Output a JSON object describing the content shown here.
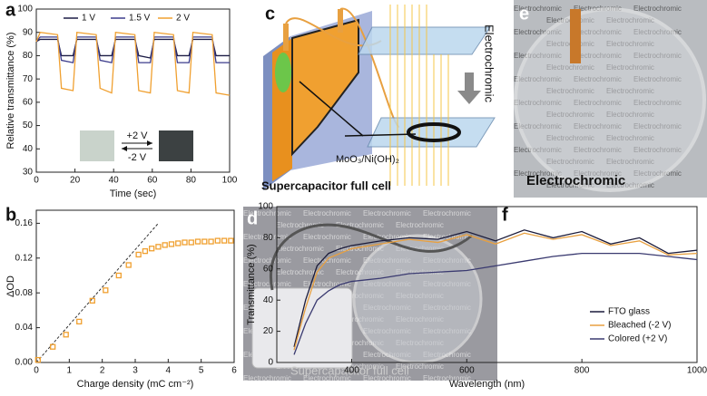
{
  "chart_data": [
    {
      "type": "line",
      "label": "a",
      "x_label": "Time (sec)",
      "y_label": "Relative transmittance (%)",
      "x": [
        0,
        2,
        11,
        13,
        19,
        21,
        31,
        33,
        39,
        41,
        51,
        53,
        59,
        61,
        71,
        73,
        79,
        81,
        91,
        93,
        100
      ],
      "series": [
        {
          "name": "1 V",
          "color": "#1c1c45",
          "values": [
            86,
            87,
            87,
            80,
            80,
            87,
            87,
            80,
            80,
            87,
            87,
            80,
            79,
            87,
            87,
            80,
            80,
            87,
            87,
            80,
            80
          ]
        },
        {
          "name": "1.5 V",
          "color": "#3c3c8c",
          "values": [
            86,
            88,
            88,
            78,
            77,
            88,
            88,
            78,
            77,
            88,
            88,
            77,
            77,
            88,
            88,
            77,
            77,
            88,
            88,
            77,
            77
          ]
        },
        {
          "name": "2 V",
          "color": "#f0a030",
          "values": [
            86,
            90,
            89,
            66,
            65,
            90,
            89,
            66,
            64,
            90,
            89,
            65,
            64,
            90,
            89,
            65,
            64,
            90,
            89,
            64,
            63
          ]
        }
      ],
      "xlim": [
        0,
        100
      ],
      "xticks": [
        0,
        20,
        40,
        60,
        80,
        100
      ],
      "ylim": [
        30,
        100
      ],
      "yticks": [
        30,
        40,
        50,
        60,
        70,
        80,
        90,
        100
      ],
      "legend": "upper center",
      "annotations": [
        "+2 V",
        "-2 V"
      ]
    },
    {
      "type": "scatter",
      "label": "b",
      "x_label": "Charge density (mC cm⁻²)",
      "y_label": "ΔOD",
      "color": "#f0a030",
      "x": [
        0.05,
        0.5,
        0.9,
        1.3,
        1.7,
        2.1,
        2.5,
        2.8,
        3.1,
        3.3,
        3.5,
        3.7,
        3.9,
        4.1,
        4.3,
        4.5,
        4.7,
        4.9,
        5.1,
        5.3,
        5.5,
        5.7,
        5.9
      ],
      "values": [
        0.003,
        0.018,
        0.032,
        0.047,
        0.071,
        0.083,
        0.1,
        0.112,
        0.124,
        0.128,
        0.131,
        0.133,
        0.135,
        0.136,
        0.137,
        0.138,
        0.138,
        0.139,
        0.139,
        0.139,
        0.14,
        0.14,
        0.14
      ],
      "fit": {
        "x": [
          0,
          3.7
        ],
        "y": [
          0,
          0.16
        ]
      },
      "xlim": [
        0,
        6
      ],
      "xticks": [
        0,
        1,
        2,
        3,
        4,
        5,
        6
      ],
      "ylim": [
        0,
        0.175
      ],
      "yticks": [
        {
          "value": 0,
          "label": "0.00"
        },
        0.04,
        0.08,
        0.12,
        0.16
      ]
    },
    {
      "type": "line",
      "label": "f",
      "x_label": "Wavelength (nm)",
      "y_label": "Transmittance (%)",
      "x": [
        300,
        320,
        340,
        360,
        380,
        400,
        450,
        500,
        550,
        600,
        650,
        700,
        750,
        800,
        850,
        900,
        950,
        1000
      ],
      "series": [
        {
          "name": "FTO glass",
          "color": "#1b1b3a",
          "values": [
            10,
            40,
            62,
            70,
            73,
            75,
            78,
            80,
            79,
            84,
            78,
            85,
            80,
            84,
            76,
            80,
            70,
            72
          ]
        },
        {
          "name": "Bleached (-2 V)",
          "color": "#e8a040",
          "values": [
            8,
            35,
            58,
            67,
            70,
            73,
            76,
            79,
            77,
            82,
            76,
            83,
            79,
            82,
            75,
            78,
            69,
            70
          ]
        },
        {
          "name": "Colored (+2 V)",
          "color": "#3a3a70",
          "values": [
            5,
            25,
            40,
            46,
            50,
            52,
            54,
            57,
            58,
            59,
            62,
            65,
            68,
            70,
            70,
            70,
            68,
            66
          ]
        }
      ],
      "xlim": [
        270,
        1000
      ],
      "xticks": [
        400,
        600,
        800,
        1000
      ],
      "ylim": [
        0,
        100
      ],
      "yticks": [
        0,
        20,
        40,
        60,
        80,
        100
      ],
      "legend": "lower right"
    }
  ],
  "panels": {
    "c": {
      "label": "c",
      "side_text": "Electrochromic",
      "material": "MoO₃/Ni(OH)₂",
      "caption": "Supercapacitor full cell"
    },
    "d": {
      "label": "d",
      "background_text": "Electrochromic",
      "caption": "Supercapacitor full cell"
    },
    "e": {
      "label": "e",
      "background_text": "Electrochromic",
      "caption": "Electrochromic"
    }
  }
}
